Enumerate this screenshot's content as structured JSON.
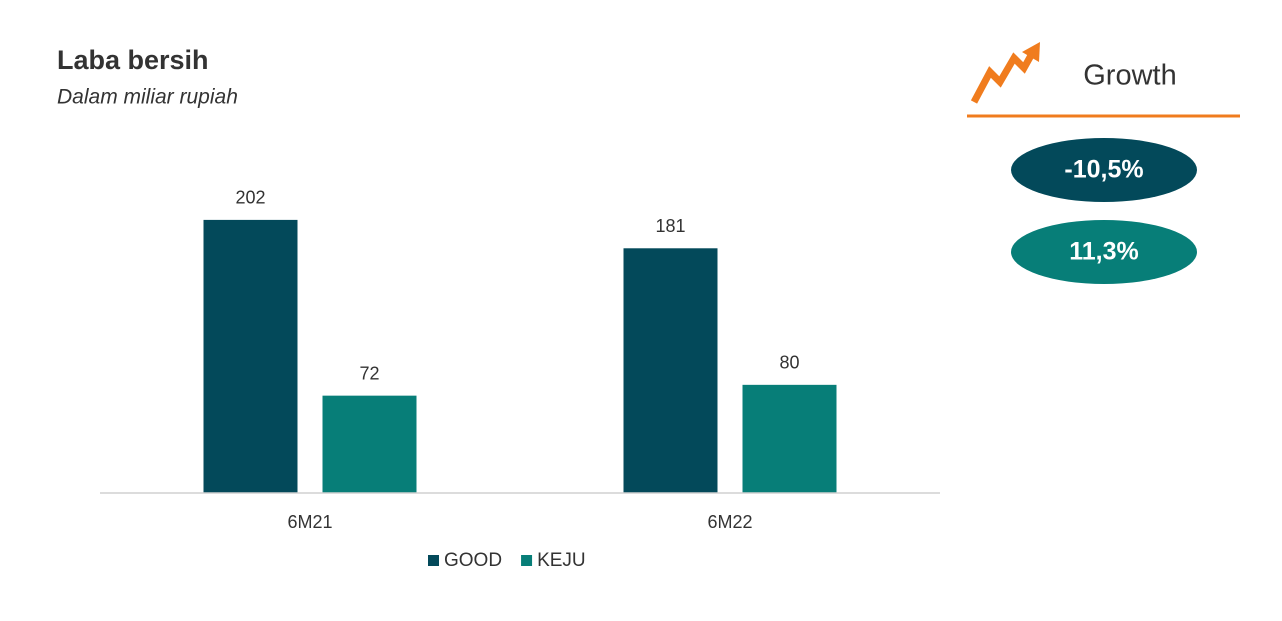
{
  "chart_data": {
    "type": "bar",
    "title": "Laba bersih",
    "subtitle": "Dalam miliar rupiah",
    "categories": [
      "6M21",
      "6M22"
    ],
    "series": [
      {
        "name": "GOOD",
        "color": "#03495a",
        "values": [
          202,
          181
        ]
      },
      {
        "name": "KEJU",
        "color": "#077e78",
        "values": [
          72,
          80
        ]
      }
    ],
    "ylim": [
      0,
      250
    ],
    "legend": "bottom",
    "growth": {
      "title": "Growth",
      "items": [
        "-10,5%",
        "11,3%"
      ],
      "accent": "#f07c1e"
    }
  }
}
